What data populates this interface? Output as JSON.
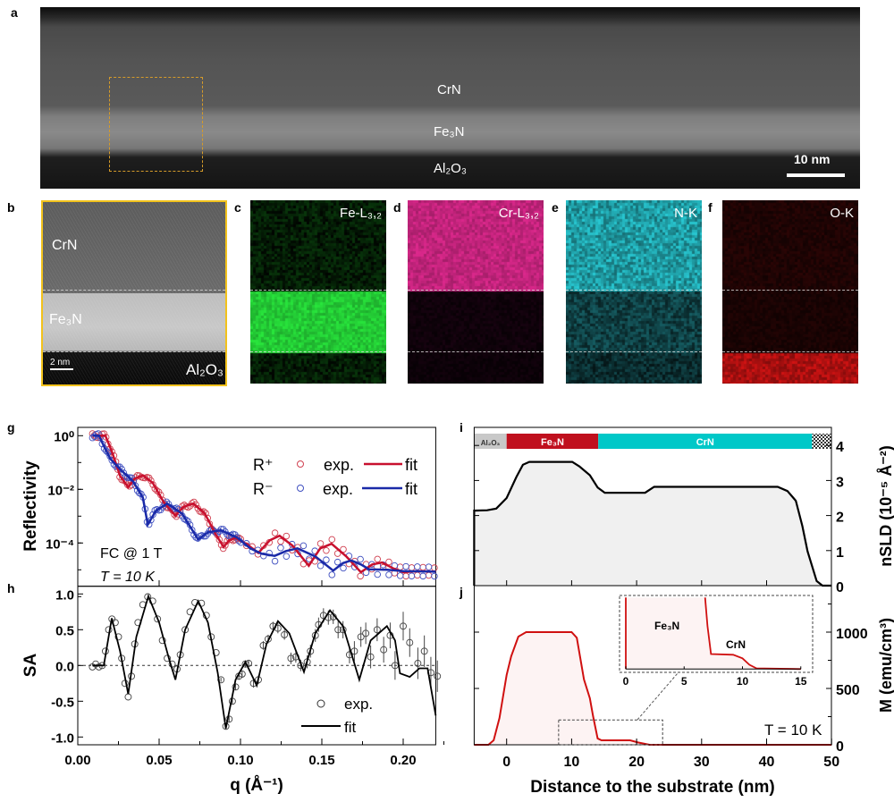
{
  "panel_letters": {
    "a": "a",
    "b": "b",
    "c": "c",
    "d": "d",
    "e": "e",
    "f": "f",
    "g": "g",
    "h": "h",
    "i": "i",
    "j": "j"
  },
  "panel_a": {
    "crn": "CrN",
    "fe3n": "Fe₃N",
    "al2o3": "Al₂O₃",
    "scale": "10 nm"
  },
  "panel_b": {
    "crn": "CrN",
    "fe3n": "Fe₃N",
    "al2o3": "Al₂O₃",
    "scale": "2 nm"
  },
  "maps": {
    "c": "Fe-L₃,₂",
    "d": "Cr-L₃,₂",
    "e": "N-K",
    "f": "O-K"
  },
  "colors": {
    "r_plus": "#c8102e",
    "r_minus": "#1a2aa8",
    "sa": "#000000",
    "nsld": "#000000",
    "m": "#d01010",
    "fe3n_bar": "#c0101e",
    "crn_bar": "#00c8c8",
    "al2o3_bar": "#c8c8c8"
  },
  "chart_data": [
    {
      "type": "scatter+line",
      "panel": "g",
      "ylabel": "Reflectivity",
      "yscale": "log",
      "ylim_log10": [
        -5.6,
        0.3
      ],
      "xlim": [
        0,
        0.22
      ],
      "yticks": [
        {
          "v": 0,
          "label": "10⁰"
        },
        {
          "v": -2,
          "label": "10⁻²"
        },
        {
          "v": -4,
          "label": "10⁻⁴"
        }
      ],
      "legend": {
        "r_plus": "R⁺",
        "r_minus": "R⁻",
        "exp": "exp.",
        "fit": "fit"
      },
      "annotations": {
        "field": "FC @ 1 T",
        "temp": "T = 10 K"
      },
      "series": [
        {
          "name": "R+ fit",
          "log10_points": [
            [
              0.009,
              0
            ],
            [
              0.017,
              0
            ],
            [
              0.021,
              -0.6
            ],
            [
              0.026,
              -1.5
            ],
            [
              0.031,
              -1.92
            ],
            [
              0.035,
              -1.6
            ],
            [
              0.04,
              -1.48
            ],
            [
              0.046,
              -1.75
            ],
            [
              0.053,
              -2.5
            ],
            [
              0.06,
              -2.98
            ],
            [
              0.065,
              -2.65
            ],
            [
              0.071,
              -2.53
            ],
            [
              0.078,
              -2.9
            ],
            [
              0.085,
              -3.7
            ],
            [
              0.0896,
              -4.15
            ],
            [
              0.093,
              -3.9
            ],
            [
              0.097,
              -3.81
            ],
            [
              0.104,
              -4.05
            ],
            [
              0.111,
              -4.37
            ],
            [
              0.118,
              -3.9
            ],
            [
              0.124,
              -3.73
            ],
            [
              0.132,
              -4.1
            ],
            [
              0.142,
              -4.85
            ],
            [
              0.149,
              -4.2
            ],
            [
              0.156,
              -4.03
            ],
            [
              0.165,
              -4.5
            ],
            [
              0.174,
              -5.09
            ],
            [
              0.181,
              -4.8
            ],
            [
              0.187,
              -4.73
            ],
            [
              0.194,
              -4.95
            ],
            [
              0.2,
              -5.09
            ],
            [
              0.21,
              -5.05
            ],
            [
              0.22,
              -5.07
            ]
          ]
        },
        {
          "name": "R- fit",
          "log10_points": [
            [
              0.009,
              0
            ],
            [
              0.013,
              0
            ],
            [
              0.017,
              -0.5
            ],
            [
              0.02,
              -0.86
            ],
            [
              0.027,
              -1.31
            ],
            [
              0.034,
              -1.7
            ],
            [
              0.04,
              -2.31
            ],
            [
              0.043,
              -3.31
            ],
            [
              0.048,
              -2.8
            ],
            [
              0.055,
              -2.53
            ],
            [
              0.064,
              -2.9
            ],
            [
              0.074,
              -3.87
            ],
            [
              0.08,
              -3.6
            ],
            [
              0.088,
              -3.53
            ],
            [
              0.098,
              -3.8
            ],
            [
              0.106,
              -4.2
            ],
            [
              0.113,
              -4.4
            ],
            [
              0.121,
              -4.48
            ],
            [
              0.128,
              -4.3
            ],
            [
              0.135,
              -4.2
            ],
            [
              0.146,
              -4.5
            ],
            [
              0.157,
              -5.03
            ],
            [
              0.163,
              -4.75
            ],
            [
              0.168,
              -4.65
            ],
            [
              0.174,
              -4.8
            ],
            [
              0.179,
              -4.98
            ],
            [
              0.19,
              -5.0
            ],
            [
              0.2,
              -5.05
            ],
            [
              0.22,
              -5.07
            ]
          ]
        }
      ]
    },
    {
      "type": "scatter+line",
      "panel": "h",
      "xlabel": "q (Å⁻¹)",
      "ylabel": "SA",
      "xlim": [
        0,
        0.22
      ],
      "ylim": [
        -1.11,
        1.11
      ],
      "xticks": [
        "0.00",
        "0.05",
        "0.10",
        "0.15",
        "0.20"
      ],
      "yticks": [
        "1.0",
        "0.5",
        "0.0",
        "-0.5",
        "-1.0"
      ],
      "legend": {
        "exp": "exp.",
        "fit": "fit"
      },
      "fit": [
        [
          0.009,
          0
        ],
        [
          0.016,
          0
        ],
        [
          0.0209,
          0.66
        ],
        [
          0.026,
          0.2
        ],
        [
          0.031,
          -0.4
        ],
        [
          0.036,
          0.4
        ],
        [
          0.0434,
          0.97
        ],
        [
          0.05,
          0.6
        ],
        [
          0.056,
          0.1
        ],
        [
          0.06,
          -0.2
        ],
        [
          0.066,
          0.5
        ],
        [
          0.074,
          0.9
        ],
        [
          0.08,
          0.6
        ],
        [
          0.086,
          -0.1
        ],
        [
          0.091,
          -0.88
        ],
        [
          0.097,
          -0.2
        ],
        [
          0.103,
          0.05
        ],
        [
          0.11,
          -0.28
        ],
        [
          0.116,
          0.3
        ],
        [
          0.123,
          0.62
        ],
        [
          0.13,
          0.45
        ],
        [
          0.139,
          -0.09
        ],
        [
          0.146,
          0.45
        ],
        [
          0.155,
          0.77
        ],
        [
          0.163,
          0.55
        ],
        [
          0.173,
          -0.2
        ],
        [
          0.18,
          0.35
        ],
        [
          0.19,
          0.55
        ],
        [
          0.195,
          0.35
        ],
        [
          0.198,
          -0.11
        ],
        [
          0.204,
          -0.16
        ],
        [
          0.21,
          -0.04
        ],
        [
          0.215,
          -0.04
        ],
        [
          0.22,
          -0.7
        ]
      ],
      "exp": [
        [
          0.009,
          -0.02,
          0
        ],
        [
          0.011,
          0.02,
          0
        ],
        [
          0.013,
          -0.02,
          0
        ],
        [
          0.015,
          0,
          0
        ],
        [
          0.017,
          0.2,
          0
        ],
        [
          0.019,
          0.5,
          0
        ],
        [
          0.021,
          0.65,
          0
        ],
        [
          0.023,
          0.6,
          0
        ],
        [
          0.025,
          0.4,
          0
        ],
        [
          0.027,
          0.1,
          0
        ],
        [
          0.029,
          -0.25,
          0
        ],
        [
          0.031,
          -0.44,
          0
        ],
        [
          0.033,
          -0.15,
          0
        ],
        [
          0.035,
          0.3,
          0
        ],
        [
          0.037,
          0.6,
          0
        ],
        [
          0.04,
          0.85,
          0
        ],
        [
          0.043,
          0.96,
          0
        ],
        [
          0.046,
          0.9,
          0
        ],
        [
          0.049,
          0.65,
          0
        ],
        [
          0.052,
          0.35,
          0
        ],
        [
          0.055,
          0.1,
          0
        ],
        [
          0.058,
          0.02,
          0
        ],
        [
          0.061,
          -0.05,
          0
        ],
        [
          0.063,
          0.15,
          0
        ],
        [
          0.066,
          0.5,
          0
        ],
        [
          0.069,
          0.75,
          0
        ],
        [
          0.072,
          0.88,
          0
        ],
        [
          0.076,
          0.87,
          0
        ],
        [
          0.079,
          0.7,
          0
        ],
        [
          0.082,
          0.4,
          0
        ],
        [
          0.085,
          0.18,
          0
        ],
        [
          0.088,
          -0.2,
          0.03
        ],
        [
          0.091,
          -0.85,
          0.04
        ],
        [
          0.093,
          -0.75,
          0.04
        ],
        [
          0.095,
          -0.5,
          0.04
        ],
        [
          0.097,
          -0.3,
          0.04
        ],
        [
          0.099,
          -0.15,
          0.05
        ],
        [
          0.101,
          -0.12,
          0.05
        ],
        [
          0.103,
          0.02,
          0.05
        ],
        [
          0.105,
          0.03,
          0.05
        ],
        [
          0.108,
          -0.25,
          0.06
        ],
        [
          0.111,
          -0.2,
          0.06
        ],
        [
          0.114,
          0.28,
          0.06
        ],
        [
          0.117,
          0.37,
          0.06
        ],
        [
          0.12,
          0.55,
          0.06
        ],
        [
          0.123,
          0.52,
          0.07
        ],
        [
          0.127,
          0.43,
          0.07
        ],
        [
          0.131,
          0.1,
          0.08
        ],
        [
          0.134,
          0.12,
          0.08
        ],
        [
          0.137,
          0,
          0.08
        ],
        [
          0.141,
          0.05,
          0.09
        ],
        [
          0.143,
          0.2,
          0.09
        ],
        [
          0.146,
          0.42,
          0.09
        ],
        [
          0.148,
          0.57,
          0.1
        ],
        [
          0.151,
          0.7,
          0.1
        ],
        [
          0.154,
          0.67,
          0.1
        ],
        [
          0.157,
          0.68,
          0.1
        ],
        [
          0.16,
          0.5,
          0.12
        ],
        [
          0.163,
          0.5,
          0.12
        ],
        [
          0.167,
          0.15,
          0.12
        ],
        [
          0.17,
          0.2,
          0.14
        ],
        [
          0.174,
          0.4,
          0.14
        ],
        [
          0.177,
          0.45,
          0.15
        ],
        [
          0.18,
          0.12,
          0.16
        ],
        [
          0.184,
          0.5,
          0.16
        ],
        [
          0.188,
          0.22,
          0.18
        ],
        [
          0.192,
          0.42,
          0.18
        ],
        [
          0.195,
          0,
          0.2
        ],
        [
          0.2,
          0.55,
          0.2
        ],
        [
          0.204,
          0.32,
          0.2
        ],
        [
          0.209,
          0.03,
          0.22
        ],
        [
          0.213,
          0.2,
          0.22
        ],
        [
          0.217,
          -0.1,
          0.22
        ],
        [
          0.221,
          -0.15,
          0.22
        ]
      ]
    },
    {
      "type": "area",
      "panel": "i",
      "ylabel": "nSLD (10⁻⁵ Å⁻²)",
      "xlim": [
        -5,
        50
      ],
      "ylim": [
        0,
        4.45
      ],
      "yticks": [
        "0",
        "1",
        "2",
        "3",
        "4"
      ],
      "layers": [
        {
          "name": "Al₂O₃",
          "from": -5,
          "to": 0
        },
        {
          "name": "Fe₃N",
          "from": 0,
          "to": 14.1
        },
        {
          "name": "CrN",
          "from": 14.1,
          "to": 47
        },
        {
          "name": "",
          "from": 47,
          "to": 50
        }
      ],
      "points": [
        [
          -5,
          2.14
        ],
        [
          -3,
          2.15
        ],
        [
          -1.6,
          2.2
        ],
        [
          0,
          2.5
        ],
        [
          1.5,
          3.1
        ],
        [
          2.5,
          3.45
        ],
        [
          3.5,
          3.53
        ],
        [
          10.1,
          3.53
        ],
        [
          11.2,
          3.4
        ],
        [
          12.8,
          3.15
        ],
        [
          14,
          2.8
        ],
        [
          15.1,
          2.65
        ],
        [
          21.3,
          2.65
        ],
        [
          22.7,
          2.82
        ],
        [
          41.7,
          2.82
        ],
        [
          43.2,
          2.7
        ],
        [
          44.5,
          2.42
        ],
        [
          45.5,
          1.7
        ],
        [
          46.3,
          0.98
        ],
        [
          47.7,
          0.13
        ],
        [
          48.6,
          0
        ],
        [
          50,
          0
        ]
      ]
    },
    {
      "type": "area",
      "panel": "j",
      "xlabel": "Distance to the substrate (nm)",
      "ylabel": "M (emu/cm³)",
      "xlim": [
        -5,
        50
      ],
      "ylim": [
        0,
        1410
      ],
      "xticks": [
        "0",
        "10",
        "20",
        "30",
        "40",
        "50"
      ],
      "yticks": [
        "0",
        "500",
        "1000"
      ],
      "annotation": "T = 10 K",
      "points": [
        [
          -5,
          0
        ],
        [
          -2.8,
          0
        ],
        [
          -2,
          40
        ],
        [
          -1.1,
          238
        ],
        [
          0,
          620
        ],
        [
          0.7,
          786
        ],
        [
          1.8,
          960
        ],
        [
          3,
          1000
        ],
        [
          10,
          1000
        ],
        [
          10.8,
          950
        ],
        [
          11.9,
          580
        ],
        [
          12.8,
          413
        ],
        [
          13.3,
          254
        ],
        [
          14,
          56
        ],
        [
          14.6,
          40
        ],
        [
          19,
          40
        ],
        [
          20.2,
          21
        ],
        [
          22,
          0
        ],
        [
          50,
          0
        ]
      ],
      "inset": {
        "xlim": [
          0,
          15
        ],
        "ylim": [
          0,
          200
        ],
        "xticks": [
          "0",
          "5",
          "10",
          "15"
        ],
        "labels": {
          "fe3n": "Fe₃N",
          "crn": "CrN"
        },
        "points": [
          [
            6.8,
            200
          ],
          [
            7.0,
            120
          ],
          [
            7.3,
            42
          ],
          [
            9.2,
            40
          ],
          [
            10,
            30
          ],
          [
            10.6,
            12
          ],
          [
            11.2,
            2
          ],
          [
            15,
            0
          ]
        ]
      }
    }
  ]
}
